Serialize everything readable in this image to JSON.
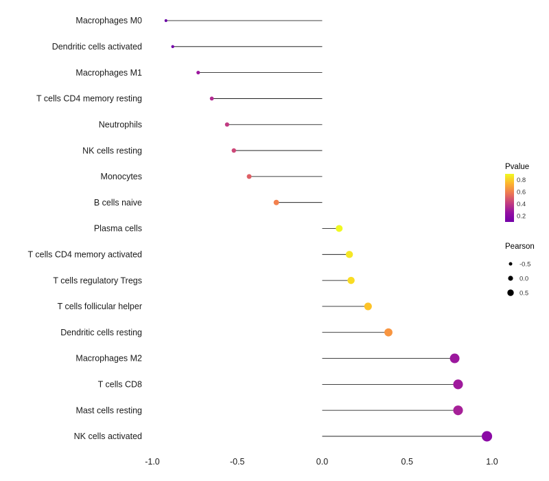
{
  "figure": {
    "background": "#ffffff",
    "stem_color": "#000000",
    "axis_text_color": "#1a1a1a"
  },
  "chart_data": {
    "type": "lollipop",
    "title": "",
    "xlabel": "",
    "ylabel": "",
    "xlim": [
      -1.15,
      1.1
    ],
    "x_ticks": [
      {
        "value": -1.0,
        "label": "-1.0"
      },
      {
        "value": -0.5,
        "label": "-0.5"
      },
      {
        "value": 0.0,
        "label": "0.0"
      },
      {
        "value": 0.5,
        "label": "0.5"
      },
      {
        "value": 1.0,
        "label": "1.0"
      }
    ],
    "rows": [
      {
        "label": "Macrophages M0",
        "pearson": -0.92,
        "pvalue": 0.02,
        "color": "#6a02a6"
      },
      {
        "label": "Dendritic cells activated",
        "pearson": -0.88,
        "pvalue": 0.04,
        "color": "#7401a8"
      },
      {
        "label": "Macrophages M1",
        "pearson": -0.73,
        "pvalue": 0.15,
        "color": "#9c179e"
      },
      {
        "label": "T cells CD4 memory resting",
        "pearson": -0.65,
        "pvalue": 0.22,
        "color": "#b12a90"
      },
      {
        "label": "Neutrophils",
        "pearson": -0.56,
        "pvalue": 0.28,
        "color": "#c13b82"
      },
      {
        "label": "NK cells resting",
        "pearson": -0.52,
        "pvalue": 0.32,
        "color": "#cc4778"
      },
      {
        "label": "Monocytes",
        "pearson": -0.43,
        "pvalue": 0.42,
        "color": "#de5f65"
      },
      {
        "label": "B cells naive",
        "pearson": -0.27,
        "pvalue": 0.58,
        "color": "#f3814e"
      },
      {
        "label": "Plasma cells",
        "pearson": 0.1,
        "pvalue": 0.88,
        "color": "#f0f921"
      },
      {
        "label": "T cells CD4 memory activated",
        "pearson": 0.16,
        "pvalue": 0.85,
        "color": "#f5e726"
      },
      {
        "label": "T cells regulatory  Tregs",
        "pearson": 0.17,
        "pvalue": 0.82,
        "color": "#f9dc24"
      },
      {
        "label": "T cells follicular helper",
        "pearson": 0.27,
        "pvalue": 0.72,
        "color": "#fdc328"
      },
      {
        "label": "Dendritic cells resting",
        "pearson": 0.39,
        "pvalue": 0.62,
        "color": "#f89540"
      },
      {
        "label": "Macrophages M2",
        "pearson": 0.78,
        "pvalue": 0.14,
        "color": "#9b189d"
      },
      {
        "label": "T cells CD8",
        "pearson": 0.8,
        "pvalue": 0.15,
        "color": "#9f1a9c"
      },
      {
        "label": "Mast cells resting",
        "pearson": 0.8,
        "pvalue": 0.17,
        "color": "#a62098"
      },
      {
        "label": "NK cells activated",
        "pearson": 0.97,
        "pvalue": 0.08,
        "color": "#8b0aa5"
      }
    ],
    "legends": {
      "pvalue": {
        "title": "Pvalue",
        "ticks": [
          "0.8",
          "0.6",
          "0.4",
          "0.2"
        ],
        "gradient_top_to_bottom": [
          "#f0f921",
          "#fdb52e",
          "#ed7953",
          "#c5407e",
          "#9511a1",
          "#7301a8"
        ]
      },
      "pearson": {
        "title": "Pearson",
        "items": [
          {
            "label": "-0.5",
            "value": -0.5
          },
          {
            "label": "0.0",
            "value": 0.0
          },
          {
            "label": "0.5",
            "value": 0.5
          }
        ]
      }
    }
  }
}
